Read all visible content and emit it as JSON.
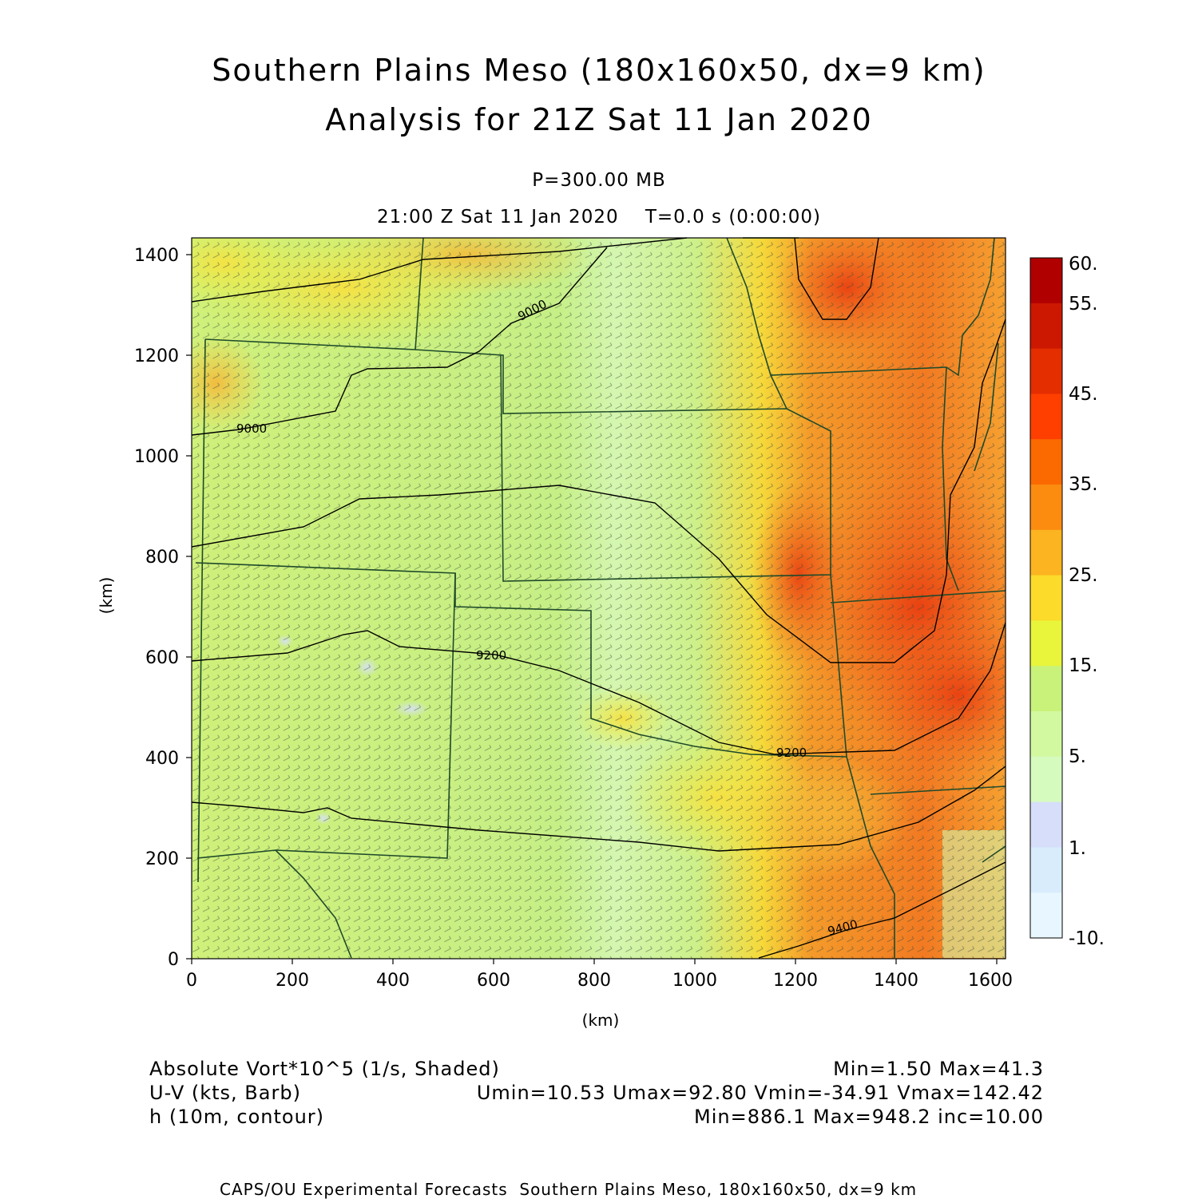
{
  "header": {
    "title_line1": "Southern Plains Meso (180x160x50, dx=9 km)",
    "title_line2": "Analysis for 21Z Sat 11 Jan 2020",
    "level": "P=300.00 MB",
    "valid_time": "21:00 Z Sat 11 Jan 2020    T=0.0 s (0:00:00)"
  },
  "map": {
    "x_axis": {
      "label": "(km)",
      "ticks": [
        "0",
        "200",
        "400",
        "600",
        "800",
        "1000",
        "1200",
        "1400",
        "1600"
      ],
      "range": [
        0,
        1620
      ]
    },
    "y_axis": {
      "label": "(km)",
      "ticks": [
        "0",
        "200",
        "400",
        "600",
        "800",
        "1000",
        "1200",
        "1400"
      ],
      "range": [
        0,
        1435
      ]
    },
    "contour_labels": [
      "9000",
      "9000",
      "9200",
      "9200",
      "9400"
    ]
  },
  "colorbar": {
    "labels": [
      "60.",
      "55.",
      "45.",
      "35.",
      "25.",
      "15.",
      "5.",
      "1.",
      "-10."
    ],
    "colors": [
      "#b00000",
      "#cc1800",
      "#e42e00",
      "#ff3f00",
      "#fb6a00",
      "#fb8c10",
      "#fcb420",
      "#fcdb2a",
      "#e8f53a",
      "#c9f27a",
      "#d2f9a0",
      "#d6fbbf",
      "#d6def9",
      "#d8ecfc",
      "#e8f6ff"
    ]
  },
  "legend": {
    "shaded_label": "Absolute Vort*10^5 (1/s, Shaded)",
    "shaded_stats": "Min=1.50 Max=41.3",
    "barb_label": "U-V (kts, Barb)",
    "barb_stats": "Umin=10.53 Umax=92.80 Vmin=-34.91 Vmax=142.42",
    "contour_label": "h (10m, contour)",
    "contour_stats": "Min=886.1 Max=948.2 inc=10.00"
  },
  "footer": {
    "credit": "CAPS/OU Experimental Forecasts  Southern Plains Meso, 180x160x50, dx=9 km"
  }
}
